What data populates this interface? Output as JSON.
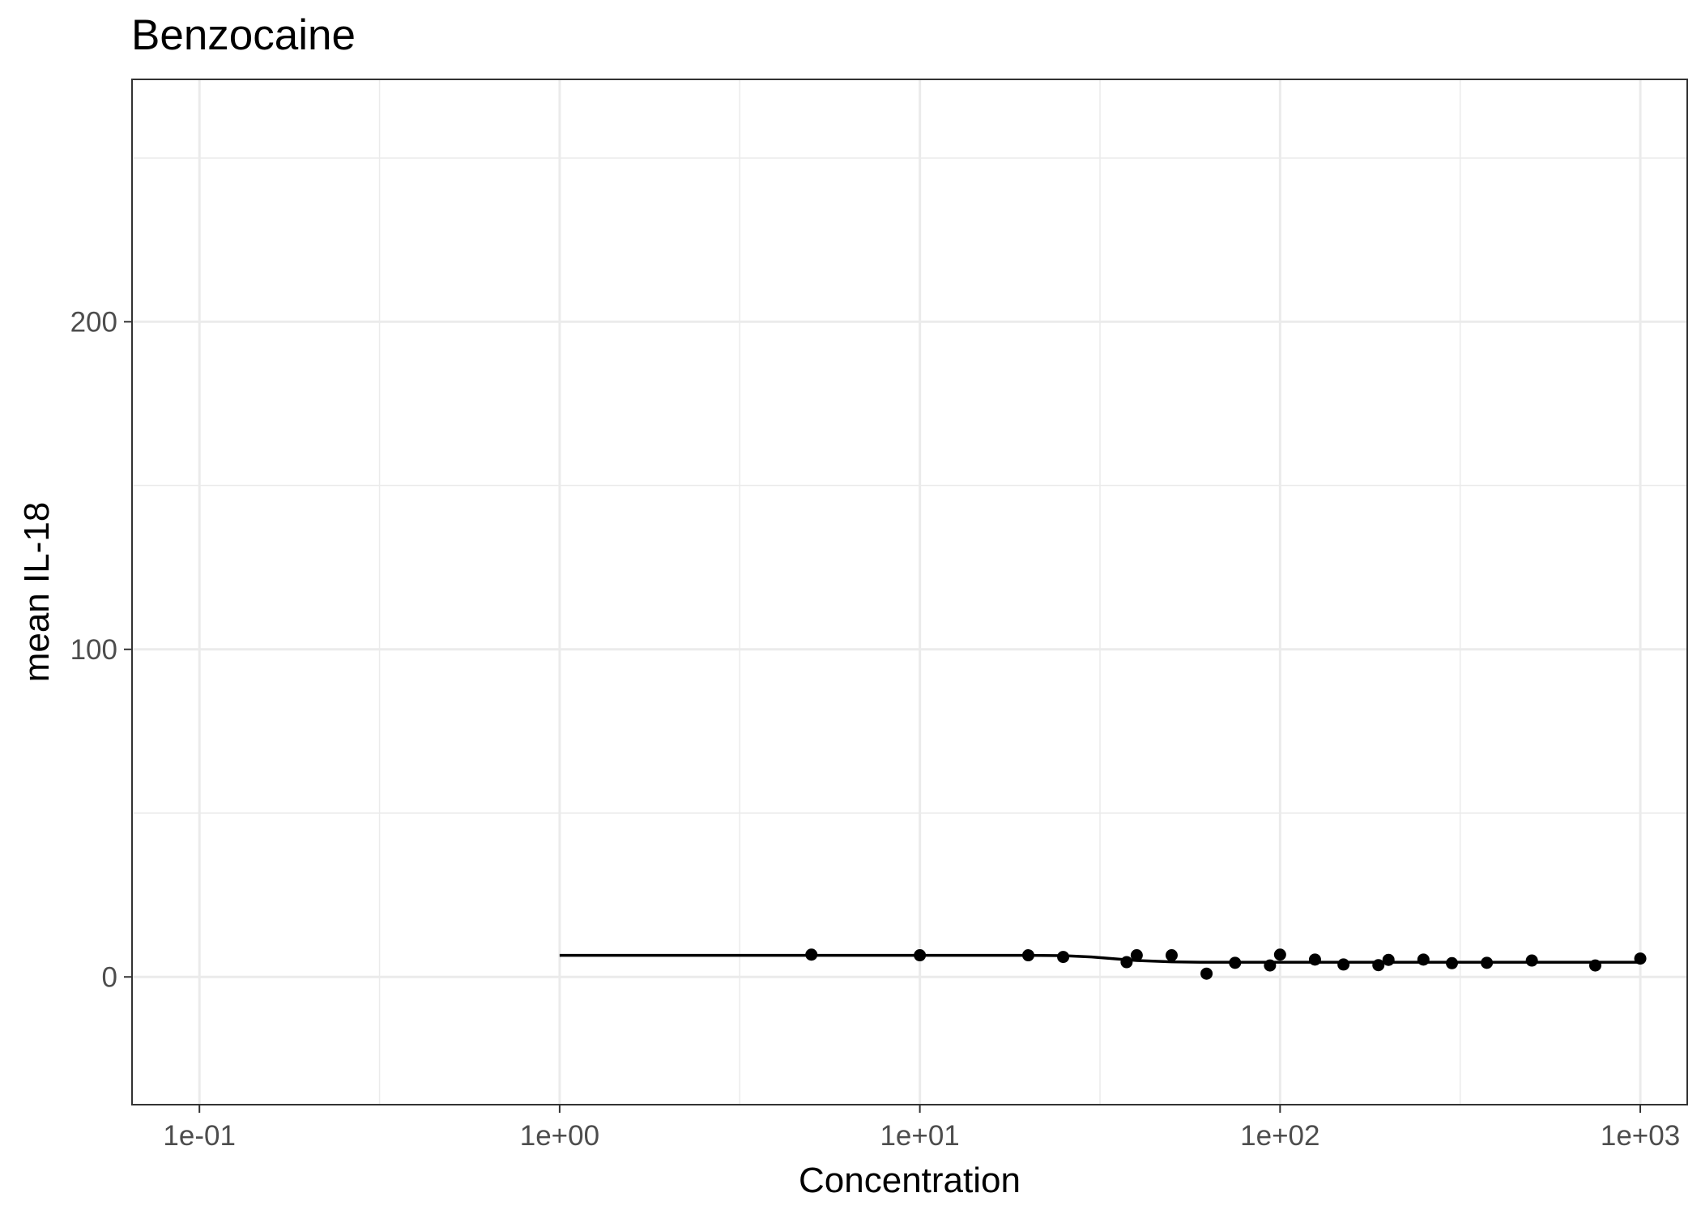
{
  "chart_data": {
    "type": "scatter",
    "title": "Benzocaine",
    "xlabel": "Concentration",
    "ylabel": "mean IL-18",
    "x_scale": "log10",
    "xlim": [
      0.065,
      1350
    ],
    "ylim": [
      -39,
      274
    ],
    "x_ticks": [
      {
        "value": 0.1,
        "label": "1e-01"
      },
      {
        "value": 1,
        "label": "1e+00"
      },
      {
        "value": 10,
        "label": "1e+01"
      },
      {
        "value": 100,
        "label": "1e+02"
      },
      {
        "value": 1000,
        "label": "1e+03"
      }
    ],
    "y_ticks": [
      {
        "value": 0,
        "label": "0"
      },
      {
        "value": 100,
        "label": "100"
      },
      {
        "value": 200,
        "label": "200"
      }
    ],
    "grid": true,
    "legend": "none",
    "series": [
      {
        "kind": "points",
        "x": [
          5,
          10,
          20,
          25,
          37.5,
          40,
          50,
          62.5,
          75,
          93.75,
          100,
          125,
          150,
          187.5,
          200,
          250,
          300,
          375,
          500,
          750,
          1000
        ],
        "y": [
          6.8,
          6.6,
          6.6,
          6.1,
          4.5,
          6.6,
          6.6,
          1.0,
          4.3,
          3.5,
          6.8,
          5.3,
          3.8,
          3.6,
          5.2,
          5.3,
          4.2,
          4.3,
          5.0,
          3.5,
          5.6
        ]
      },
      {
        "kind": "fit",
        "x": [
          1,
          2,
          5,
          10,
          20,
          25,
          30,
          35,
          40,
          50,
          60,
          80,
          100,
          200,
          500,
          1000
        ],
        "y": [
          6.6,
          6.6,
          6.6,
          6.6,
          6.6,
          6.5,
          6.1,
          5.5,
          5.0,
          4.6,
          4.5,
          4.5,
          4.5,
          4.5,
          4.5,
          4.5
        ]
      }
    ]
  }
}
